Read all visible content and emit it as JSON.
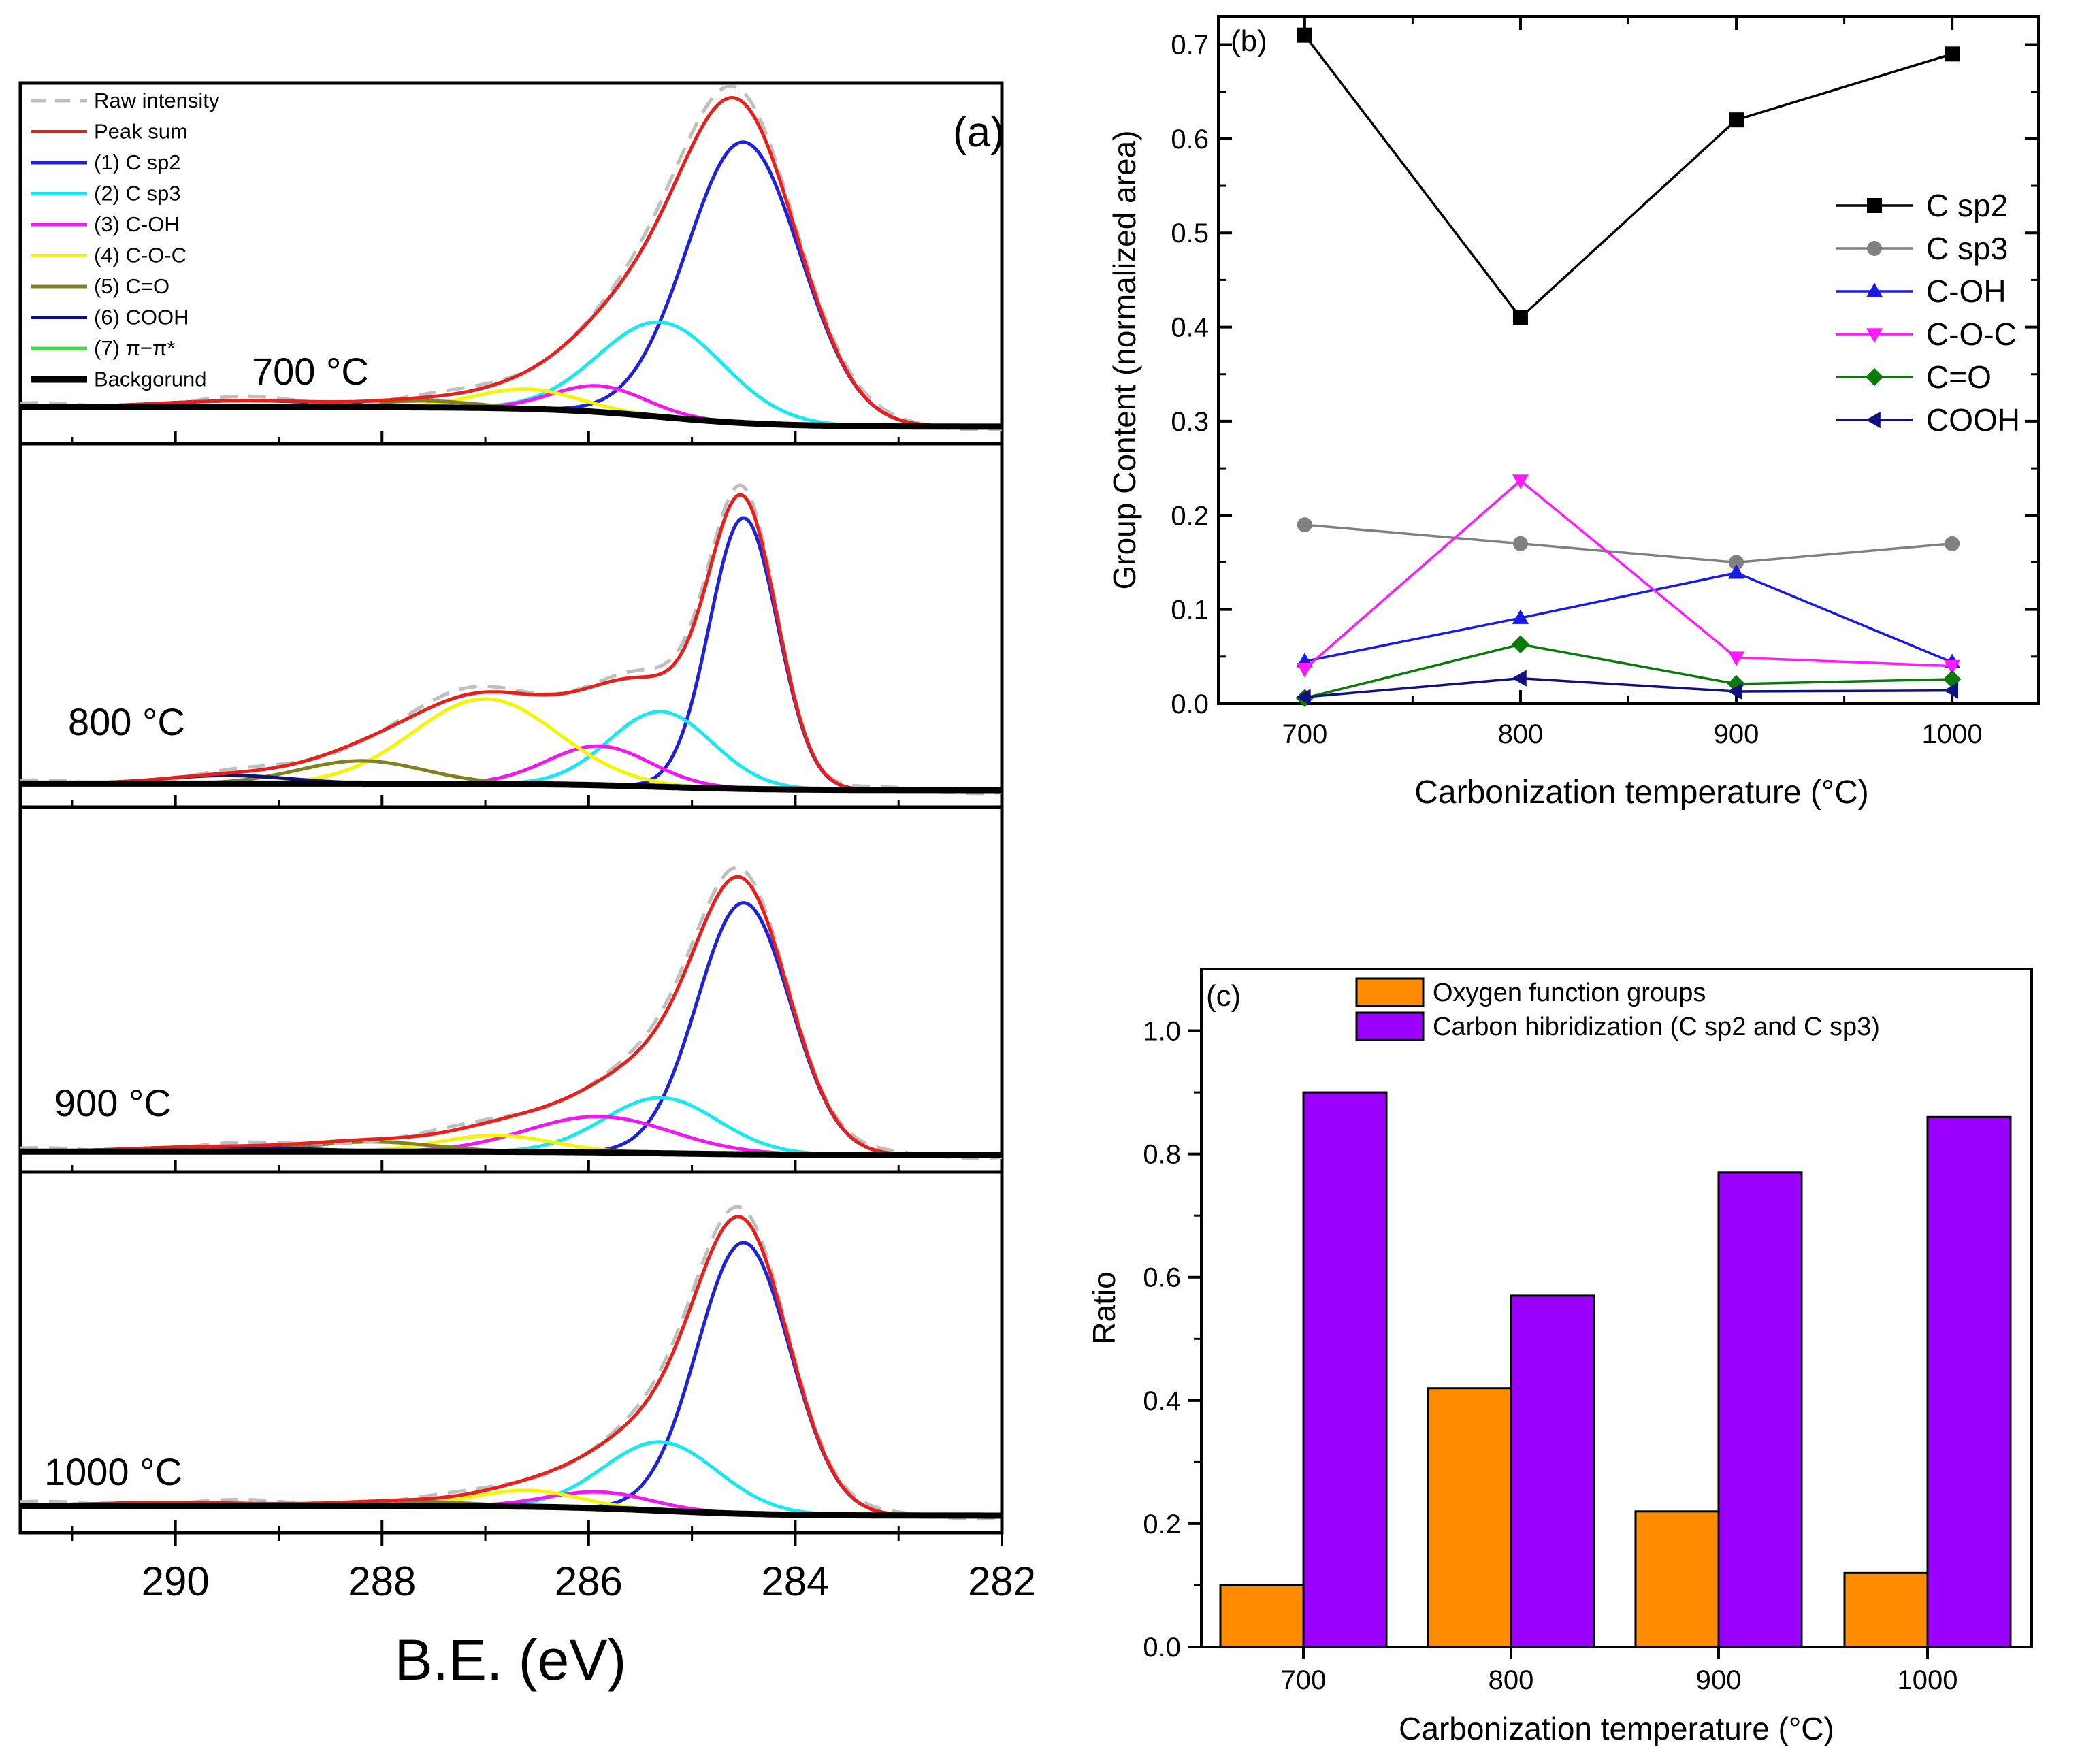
{
  "chart_data": [
    {
      "panel": "a",
      "type": "line",
      "panel_label": "(a)",
      "xlabel": "B.E. (eV)",
      "xlim": [
        291.5,
        282
      ],
      "x_ticks": [
        290,
        288,
        286,
        284,
        282
      ],
      "legend": [
        {
          "name": "Raw intensity",
          "color": "#bfbfbf",
          "dash": true
        },
        {
          "name": "Peak sum",
          "color": "#e8201c"
        },
        {
          "name": "(1) C sp2",
          "color": "#1f23d8"
        },
        {
          "name": "(2) C sp3",
          "color": "#18e8ef"
        },
        {
          "name": "(3) C-OH",
          "color": "#f018f0"
        },
        {
          "name": "(4) C-O-C",
          "color": "#f5f500"
        },
        {
          "name": "(5) C=O",
          "color": "#808020"
        },
        {
          "name": "(6) COOH",
          "color": "#10107a"
        },
        {
          "name": "(7) π−π*",
          "color": "#40e040"
        },
        {
          "name": "Backgorund",
          "color": "#000000",
          "bold": true
        }
      ],
      "subplots": [
        {
          "label": "700 °C",
          "background": [
            0.06,
            0.0
          ],
          "peaks": [
            {
              "comp": "C sp2",
              "center": 284.5,
              "amp": 0.86,
              "width": 0.55
            },
            {
              "comp": "C sp3",
              "center": 285.3,
              "amp": 0.29,
              "width": 0.6
            },
            {
              "comp": "C-OH",
              "center": 285.9,
              "amp": 0.08,
              "width": 0.45
            },
            {
              "comp": "C-O-C",
              "center": 286.6,
              "amp": 0.06,
              "width": 0.5
            },
            {
              "comp": "C=O",
              "center": 287.6,
              "amp": 0.02,
              "width": 0.5
            },
            {
              "comp": "COOH",
              "center": 289.3,
              "amp": 0.02,
              "width": 0.8
            }
          ]
        },
        {
          "label": "800 °C",
          "background": [
            0.02,
            0.0
          ],
          "peaks": [
            {
              "comp": "C sp2",
              "center": 284.5,
              "amp": 0.83,
              "width": 0.33
            },
            {
              "comp": "C sp3",
              "center": 285.3,
              "amp": 0.23,
              "width": 0.5
            },
            {
              "comp": "C-OH",
              "center": 285.9,
              "amp": 0.12,
              "width": 0.5
            },
            {
              "comp": "C-O-C",
              "center": 287.0,
              "amp": 0.26,
              "width": 0.7
            },
            {
              "comp": "C=O",
              "center": 288.2,
              "amp": 0.07,
              "width": 0.6
            },
            {
              "comp": "COOH",
              "center": 289.5,
              "amp": 0.025,
              "width": 0.6
            }
          ]
        },
        {
          "label": "900 °C",
          "background": [
            0.01,
            0.0
          ],
          "peaks": [
            {
              "comp": "C sp2",
              "center": 284.5,
              "amp": 0.77,
              "width": 0.45
            },
            {
              "comp": "C sp3",
              "center": 285.3,
              "amp": 0.17,
              "width": 0.55
            },
            {
              "comp": "C-OH",
              "center": 285.9,
              "amp": 0.11,
              "width": 0.7
            },
            {
              "comp": "C-O-C",
              "center": 286.9,
              "amp": 0.05,
              "width": 0.55
            },
            {
              "comp": "C=O",
              "center": 288.1,
              "amp": 0.03,
              "width": 0.6
            },
            {
              "comp": "COOH",
              "center": 289.6,
              "amp": 0.015,
              "width": 0.8
            }
          ]
        },
        {
          "label": "1000 °C",
          "background": [
            0.03,
            0.0
          ],
          "peaks": [
            {
              "comp": "C sp2",
              "center": 284.5,
              "amp": 0.83,
              "width": 0.45
            },
            {
              "comp": "C sp3",
              "center": 285.3,
              "amp": 0.21,
              "width": 0.55
            },
            {
              "comp": "C-OH",
              "center": 285.9,
              "amp": 0.05,
              "width": 0.5
            },
            {
              "comp": "C-O-C",
              "center": 286.6,
              "amp": 0.05,
              "width": 0.5
            },
            {
              "comp": "C=O",
              "center": 287.8,
              "amp": 0.015,
              "width": 0.6
            },
            {
              "comp": "COOH",
              "center": 290.0,
              "amp": 0.01,
              "width": 0.8
            }
          ]
        }
      ]
    },
    {
      "panel": "b",
      "type": "line",
      "panel_label": "(b)",
      "xlabel": "Carbonization temperature (°C)",
      "ylabel": "Group Content (normalized area)",
      "x": [
        700,
        800,
        900,
        1000
      ],
      "xlim": [
        660,
        1040
      ],
      "ylim": [
        0,
        0.73
      ],
      "y_ticks": [
        0.0,
        0.1,
        0.2,
        0.3,
        0.4,
        0.5,
        0.6,
        0.7
      ],
      "y_tick_labels": [
        "0.0",
        "0.1",
        "0.2",
        "0.3",
        "0.4",
        "0.5",
        "0.6",
        "0.7"
      ],
      "series": [
        {
          "name": "C sp2",
          "values": [
            0.71,
            0.41,
            0.62,
            0.69
          ],
          "color": "#000000",
          "marker": "square"
        },
        {
          "name": "C sp3",
          "values": [
            0.19,
            0.17,
            0.15,
            0.17
          ],
          "color": "#808080",
          "marker": "circle"
        },
        {
          "name": "C-OH",
          "values": [
            0.045,
            0.091,
            0.139,
            0.044
          ],
          "color": "#1a1ae6",
          "marker": "triangle-up"
        },
        {
          "name": "C-O-C",
          "values": [
            0.037,
            0.237,
            0.049,
            0.04
          ],
          "color": "#ff1aff",
          "marker": "triangle-down"
        },
        {
          "name": "C=O",
          "values": [
            0.006,
            0.063,
            0.021,
            0.026
          ],
          "color": "#0a7a0a",
          "marker": "diamond"
        },
        {
          "name": "COOH",
          "values": [
            0.007,
            0.027,
            0.013,
            0.014
          ],
          "color": "#101080",
          "marker": "triangle-left"
        }
      ]
    },
    {
      "panel": "c",
      "type": "bar",
      "panel_label": "(c)",
      "xlabel": "Carbonization temperature (°C)",
      "ylabel": "Ratio",
      "categories": [
        "700",
        "800",
        "900",
        "1000"
      ],
      "ylim": [
        0,
        1.1
      ],
      "y_ticks": [
        0.0,
        0.2,
        0.4,
        0.6,
        0.8,
        1.0
      ],
      "y_tick_labels": [
        "0.0",
        "0.2",
        "0.4",
        "0.6",
        "0.8",
        "1.0"
      ],
      "series": [
        {
          "name": "Oxygen function groups",
          "values": [
            0.1,
            0.42,
            0.22,
            0.12
          ],
          "color": "#ff8c00"
        },
        {
          "name": "Carbon hibridization (C sp2 and C sp3)",
          "values": [
            0.9,
            0.57,
            0.77,
            0.86
          ],
          "color": "#9b00ff"
        }
      ]
    }
  ]
}
